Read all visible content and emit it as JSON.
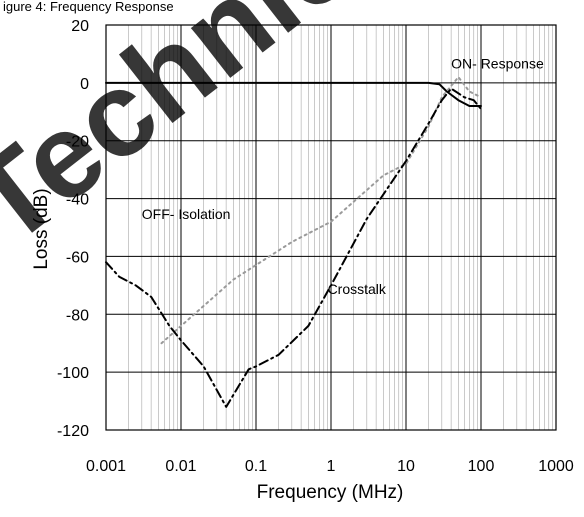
{
  "header_text": "igure 4: Frequency Response",
  "watermark": "Technic",
  "chart_data": {
    "type": "line",
    "xlabel": "Frequency (MHz)",
    "ylabel": "Loss (dB)",
    "x_scale": "log",
    "xlim": [
      0.001,
      1000
    ],
    "ylim": [
      -120,
      20
    ],
    "x_tick_labels": [
      "0.001",
      "0.01",
      "0.1",
      "1",
      "10",
      "100",
      "1000"
    ],
    "x_tick_values": [
      0.001,
      0.01,
      0.1,
      1,
      10,
      100,
      1000
    ],
    "y_tick_labels": [
      "20",
      "0",
      "-20",
      "-40",
      "-60",
      "-80",
      "-100",
      "-120"
    ],
    "y_tick_values": [
      20,
      0,
      -20,
      -40,
      -60,
      -80,
      -100,
      -120
    ],
    "grid": true,
    "legend": "none",
    "series": [
      {
        "name": "ON- Response",
        "color": "#000000",
        "dash": "solid",
        "points": [
          [
            0.001,
            0
          ],
          [
            20,
            0
          ],
          [
            28,
            -0.5
          ],
          [
            35,
            -3
          ],
          [
            50,
            -6
          ],
          [
            70,
            -8
          ],
          [
            100,
            -8
          ]
        ]
      },
      {
        "name": "OFF- Isolation",
        "color": "#9a9a9a",
        "dash": "dotted",
        "points": [
          [
            0.0055,
            -90
          ],
          [
            0.05,
            -68
          ],
          [
            0.3,
            -55
          ],
          [
            1,
            -48
          ],
          [
            5,
            -32
          ],
          [
            10,
            -28
          ],
          [
            20,
            -15
          ],
          [
            30,
            -5
          ],
          [
            50,
            2
          ],
          [
            70,
            -3
          ],
          [
            100,
            -5
          ]
        ]
      },
      {
        "name": "Crosstalk",
        "color": "#000000",
        "dash": "dashdot",
        "points": [
          [
            0.001,
            -62
          ],
          [
            0.0015,
            -67
          ],
          [
            0.0025,
            -70
          ],
          [
            0.004,
            -74
          ],
          [
            0.007,
            -84
          ],
          [
            0.01,
            -89
          ],
          [
            0.02,
            -98
          ],
          [
            0.04,
            -112
          ],
          [
            0.08,
            -99
          ],
          [
            0.1,
            -98
          ],
          [
            0.2,
            -94
          ],
          [
            0.5,
            -84
          ],
          [
            1,
            -70
          ],
          [
            3,
            -47
          ],
          [
            10,
            -27
          ],
          [
            20,
            -14
          ],
          [
            30,
            -6
          ],
          [
            40,
            -2
          ],
          [
            60,
            -5
          ],
          [
            80,
            -6
          ],
          [
            100,
            -9
          ]
        ]
      }
    ],
    "annotations": [
      {
        "text": "ON- Response",
        "x": 40,
        "y": 5
      },
      {
        "text": "OFF- Isolation",
        "x": 0.003,
        "y": -47
      },
      {
        "text": "Crosstalk",
        "x": 0.9,
        "y": -73
      }
    ]
  }
}
